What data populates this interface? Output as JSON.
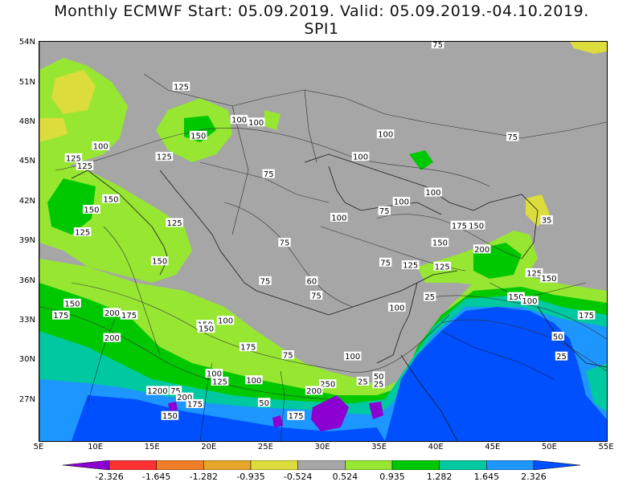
{
  "title": {
    "line1": "Monthly ECMWF Start: 05.09.2019. Valid: 05.09.2019.-04.10.2019.",
    "line2": "SPI1"
  },
  "map": {
    "lat_labels": [
      "54N",
      "51N",
      "48N",
      "45N",
      "42N",
      "39N",
      "36N",
      "33N",
      "30N",
      "27N"
    ],
    "lon_labels": [
      "5E",
      "10E",
      "15E",
      "20E",
      "25E",
      "30E",
      "35E",
      "40E",
      "45E",
      "50E",
      "55E"
    ],
    "contour_labels": [
      {
        "text": "75",
        "lon": 40.1,
        "lat": 54.0
      },
      {
        "text": "125",
        "lon": 17.5,
        "lat": 50.8
      },
      {
        "text": "100",
        "lon": 22.6,
        "lat": 48.3
      },
      {
        "text": "100",
        "lon": 24.1,
        "lat": 48.1
      },
      {
        "text": "150",
        "lon": 19.0,
        "lat": 47.1
      },
      {
        "text": "100",
        "lon": 10.4,
        "lat": 46.3
      },
      {
        "text": "125",
        "lon": 8.0,
        "lat": 45.4
      },
      {
        "text": "125",
        "lon": 16.0,
        "lat": 45.5
      },
      {
        "text": "125",
        "lon": 9.0,
        "lat": 44.8
      },
      {
        "text": "100",
        "lon": 35.5,
        "lat": 47.2
      },
      {
        "text": "75",
        "lon": 46.7,
        "lat": 47.0
      },
      {
        "text": "100",
        "lon": 33.3,
        "lat": 45.5
      },
      {
        "text": "75",
        "lon": 25.2,
        "lat": 44.2
      },
      {
        "text": "100",
        "lon": 36.9,
        "lat": 42.1
      },
      {
        "text": "100",
        "lon": 39.7,
        "lat": 42.8
      },
      {
        "text": "75",
        "lon": 35.4,
        "lat": 41.4
      },
      {
        "text": "100",
        "lon": 31.4,
        "lat": 40.9
      },
      {
        "text": "150",
        "lon": 9.6,
        "lat": 41.5
      },
      {
        "text": "150",
        "lon": 11.3,
        "lat": 42.3
      },
      {
        "text": "125",
        "lon": 8.8,
        "lat": 39.8
      },
      {
        "text": "125",
        "lon": 16.9,
        "lat": 40.5
      },
      {
        "text": "75",
        "lon": 26.6,
        "lat": 39.0
      },
      {
        "text": "150",
        "lon": 40.3,
        "lat": 39.0
      },
      {
        "text": "175",
        "lon": 42.0,
        "lat": 40.3
      },
      {
        "text": "150",
        "lon": 43.5,
        "lat": 40.3
      },
      {
        "text": "35",
        "lon": 49.7,
        "lat": 40.7
      },
      {
        "text": "200",
        "lon": 44.0,
        "lat": 38.5
      },
      {
        "text": "150",
        "lon": 15.6,
        "lat": 37.6
      },
      {
        "text": "125",
        "lon": 37.7,
        "lat": 37.3
      },
      {
        "text": "125",
        "lon": 40.5,
        "lat": 37.2
      },
      {
        "text": "75",
        "lon": 35.5,
        "lat": 37.5
      },
      {
        "text": "125",
        "lon": 48.6,
        "lat": 36.7
      },
      {
        "text": "150",
        "lon": 49.9,
        "lat": 36.3
      },
      {
        "text": "75",
        "lon": 24.9,
        "lat": 36.1
      },
      {
        "text": "60",
        "lon": 29.0,
        "lat": 36.1
      },
      {
        "text": "75",
        "lon": 29.4,
        "lat": 35.0
      },
      {
        "text": "25",
        "lon": 39.4,
        "lat": 34.9
      },
      {
        "text": "150",
        "lon": 47.0,
        "lat": 34.9
      },
      {
        "text": "100",
        "lon": 48.2,
        "lat": 34.6
      },
      {
        "text": "150",
        "lon": 7.9,
        "lat": 34.4
      },
      {
        "text": "100",
        "lon": 36.5,
        "lat": 34.1
      },
      {
        "text": "175",
        "lon": 6.9,
        "lat": 33.5
      },
      {
        "text": "200",
        "lon": 11.4,
        "lat": 33.7
      },
      {
        "text": "175",
        "lon": 12.9,
        "lat": 33.5
      },
      {
        "text": "175",
        "lon": 53.2,
        "lat": 33.5
      },
      {
        "text": "150",
        "lon": 19.6,
        "lat": 32.8
      },
      {
        "text": "100",
        "lon": 21.4,
        "lat": 33.1
      },
      {
        "text": "150",
        "lon": 19.7,
        "lat": 32.5
      },
      {
        "text": "50",
        "lon": 50.7,
        "lat": 31.9
      },
      {
        "text": "200",
        "lon": 11.4,
        "lat": 31.8
      },
      {
        "text": "175",
        "lon": 23.4,
        "lat": 31.1
      },
      {
        "text": "75",
        "lon": 26.9,
        "lat": 30.5
      },
      {
        "text": "100",
        "lon": 32.6,
        "lat": 30.4
      },
      {
        "text": "25",
        "lon": 51.0,
        "lat": 30.4
      },
      {
        "text": "100",
        "lon": 20.4,
        "lat": 29.1
      },
      {
        "text": "125",
        "lon": 20.9,
        "lat": 28.5
      },
      {
        "text": "100",
        "lon": 23.9,
        "lat": 28.6
      },
      {
        "text": "25",
        "lon": 33.5,
        "lat": 28.5
      },
      {
        "text": "25",
        "lon": 34.9,
        "lat": 28.3
      },
      {
        "text": "50",
        "lon": 34.9,
        "lat": 28.9
      },
      {
        "text": "250",
        "lon": 30.4,
        "lat": 28.3
      },
      {
        "text": "200",
        "lon": 29.2,
        "lat": 27.8
      },
      {
        "text": "1200",
        "lon": 15.4,
        "lat": 27.8
      },
      {
        "text": "75",
        "lon": 17.0,
        "lat": 27.8
      },
      {
        "text": "200",
        "lon": 17.8,
        "lat": 27.3
      },
      {
        "text": "175",
        "lon": 18.7,
        "lat": 26.8
      },
      {
        "text": "50",
        "lon": 24.8,
        "lat": 26.9
      },
      {
        "text": "150",
        "lon": 16.5,
        "lat": 25.9
      },
      {
        "text": "175",
        "lon": 27.6,
        "lat": 25.9
      }
    ],
    "colors": {
      "ocean": "#0050ff",
      "land_gray": "#a6a6a6",
      "light_green": "#96e632",
      "green": "#00c800",
      "dark_green": "#00d27e",
      "turquoise": "#00c8c8",
      "light_blue": "#1e96ff",
      "purple": "#8c1ed2",
      "yellow": "#dcdc3c"
    }
  },
  "colorbar": {
    "labels": [
      "-2.326",
      "-1.645",
      "-1.282",
      "-0.935",
      "-0.524",
      "0.524",
      "0.935",
      "1.282",
      "1.645",
      "2.326"
    ],
    "colors": [
      "#8c00d2",
      "#ff3232",
      "#f07d28",
      "#e6a628",
      "#dcdc3c",
      "#a6a6a6",
      "#96e632",
      "#00c800",
      "#00c8a0",
      "#1e96ff",
      "#0050ff"
    ]
  }
}
